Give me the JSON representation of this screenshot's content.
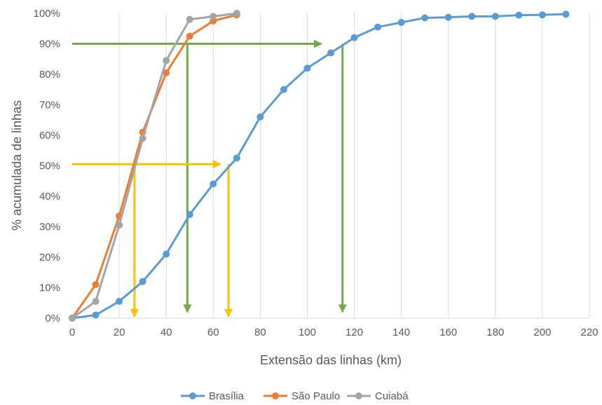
{
  "chart_data": {
    "type": "line",
    "xlabel": "Extensão das linhas (km)",
    "ylabel": "% acumulada de linhas",
    "xlim": [
      0,
      220
    ],
    "ylim": [
      0,
      100
    ],
    "x_ticks": [
      0,
      20,
      40,
      60,
      80,
      100,
      120,
      140,
      160,
      180,
      200,
      220
    ],
    "y_ticks": [
      "0%",
      "10%",
      "20%",
      "30%",
      "40%",
      "50%",
      "60%",
      "70%",
      "80%",
      "90%",
      "100%"
    ],
    "grid": "vertical",
    "legend_position": "bottom",
    "series": [
      {
        "name": "Brasília",
        "color": "#5b9bd5",
        "x": [
          0,
          10,
          20,
          30,
          40,
          50,
          60,
          70,
          80,
          90,
          100,
          110,
          120,
          130,
          140,
          150,
          160,
          170,
          180,
          190,
          200,
          210
        ],
        "y": [
          0,
          1,
          5.5,
          12,
          21,
          34,
          44,
          52.5,
          66,
          75,
          82,
          87,
          92,
          95.5,
          97,
          98.5,
          98.7,
          99,
          99,
          99.4,
          99.5,
          99.7
        ]
      },
      {
        "name": "São Paulo",
        "color": "#ed7d31",
        "x": [
          0,
          10,
          20,
          30,
          40,
          50,
          60,
          70
        ],
        "y": [
          0,
          11,
          33.5,
          61,
          80.5,
          92.5,
          97.5,
          99.5
        ]
      },
      {
        "name": "Cuiabá",
        "color": "#a5a5a5",
        "x": [
          0,
          10,
          20,
          30,
          40,
          50,
          60,
          70
        ],
        "y": [
          0,
          5.5,
          30.5,
          59,
          84.5,
          98,
          99,
          100
        ]
      }
    ],
    "annotations": [
      {
        "kind": "horizontal-arrow",
        "color": "#70ad47",
        "y": 90,
        "x_from": 0,
        "x_to": 106
      },
      {
        "kind": "vertical-arrow",
        "color": "#70ad47",
        "x": 49,
        "y_from": 90,
        "y_to": 2
      },
      {
        "kind": "vertical-arrow",
        "color": "#70ad47",
        "x": 115,
        "y_from": 90,
        "y_to": 2
      },
      {
        "kind": "horizontal-arrow",
        "color": "#ffc000",
        "y": 50.5,
        "x_from": 0,
        "x_to": 63
      },
      {
        "kind": "vertical-arrow",
        "color": "#ffc000",
        "x": 26.5,
        "y_from": 50.5,
        "y_to": 0.5
      },
      {
        "kind": "vertical-arrow",
        "color": "#ffc000",
        "x": 66.5,
        "y_from": 50.5,
        "y_to": 0.5
      }
    ]
  }
}
